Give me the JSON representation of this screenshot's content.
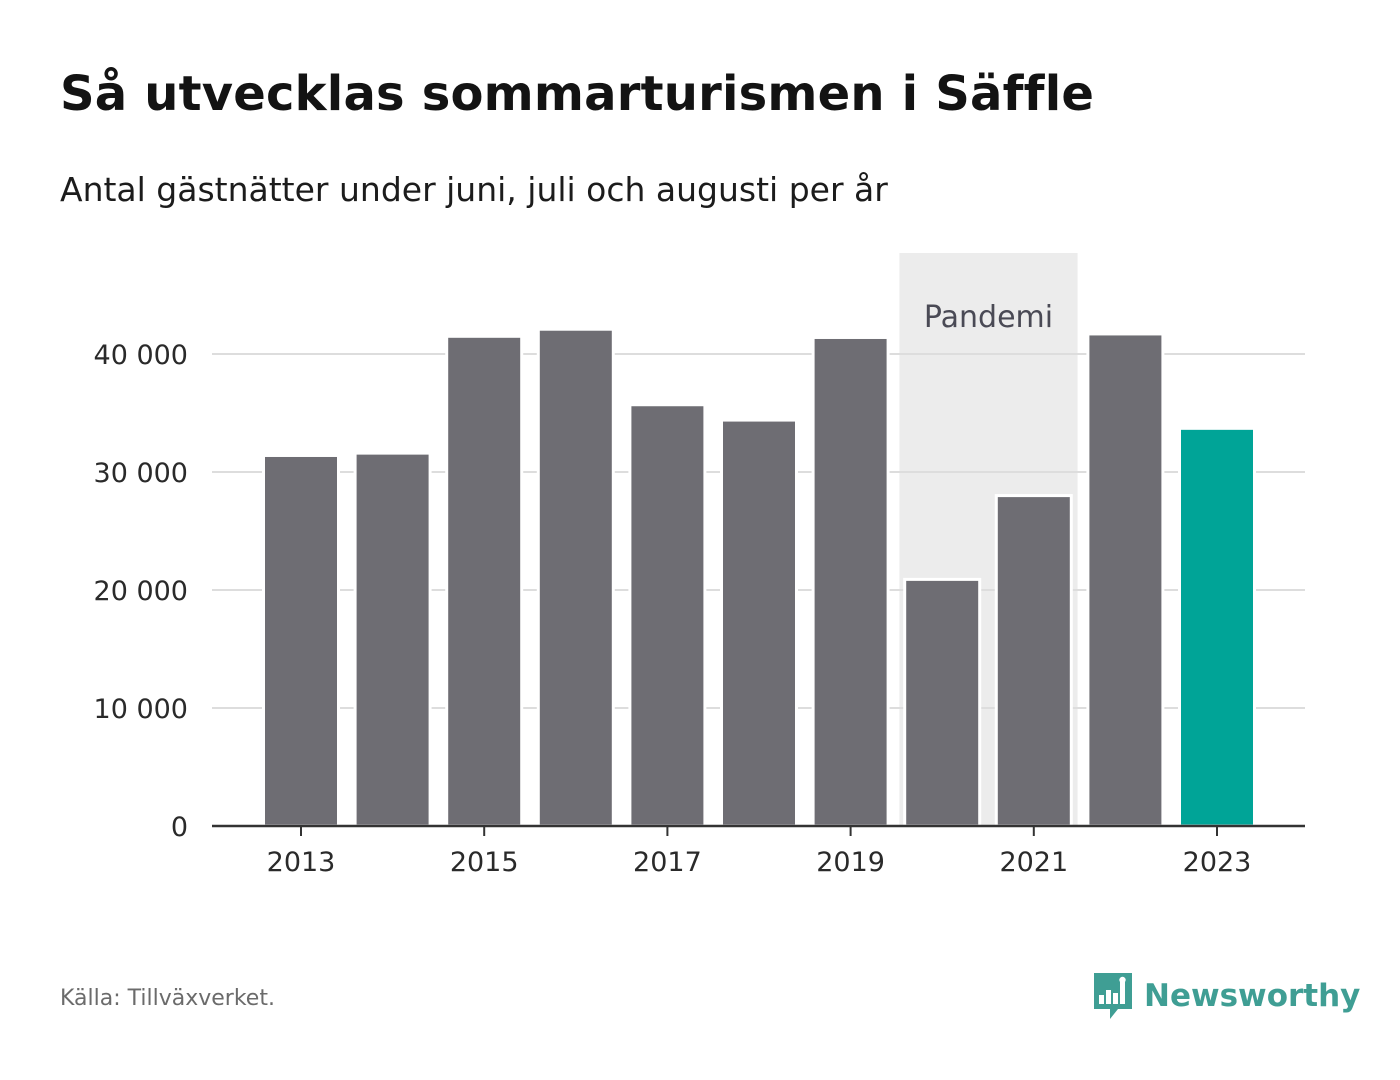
{
  "header": {
    "title": "Så utvecklas sommarturismen i Säffle",
    "subtitle": "Antal gästnätter under juni, juli och augusti per år"
  },
  "footer": {
    "source": "Källa: Tillväxverket.",
    "brand": "Newsworthy"
  },
  "colors": {
    "bar": "#6e6d73",
    "highlight": "#00a497",
    "pandemic_band": "#ececec",
    "grid": "#dddddd",
    "axis": "#333333",
    "brand": "#3f9e94"
  },
  "chart_data": {
    "type": "bar",
    "title": "Så utvecklas sommarturismen i Säffle",
    "subtitle": "Antal gästnätter under juni, juli och augusti per år",
    "xlabel": "",
    "ylabel": "",
    "categories": [
      "2013",
      "2014",
      "2015",
      "2016",
      "2017",
      "2018",
      "2019",
      "2020",
      "2021",
      "2022",
      "2023"
    ],
    "values": [
      31400,
      31600,
      41500,
      42100,
      35700,
      34400,
      41400,
      20900,
      28000,
      41700,
      33700
    ],
    "highlight_category": "2023",
    "ylim": [
      0,
      45000
    ],
    "yticks": [
      0,
      10000,
      20000,
      30000,
      40000
    ],
    "ytick_labels": [
      "0",
      "10 000",
      "20 000",
      "30 000",
      "40 000"
    ],
    "xtick_labels": [
      "2013",
      "2015",
      "2017",
      "2019",
      "2021",
      "2023"
    ],
    "grid": true,
    "annotations": [
      {
        "label": "Pandemi",
        "from": "2020",
        "to": "2021"
      }
    ]
  }
}
